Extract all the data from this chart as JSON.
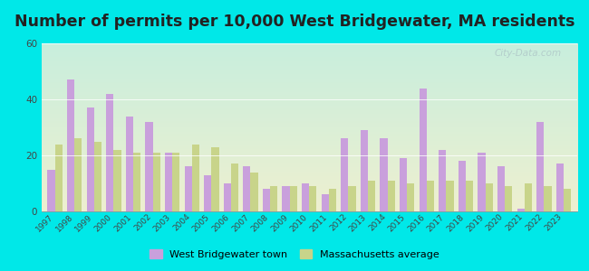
{
  "title": "Number of permits per 10,000 West Bridgewater, MA residents",
  "years": [
    1997,
    1998,
    1999,
    2000,
    2001,
    2002,
    2003,
    2004,
    2005,
    2006,
    2007,
    2008,
    2009,
    2010,
    2011,
    2012,
    2013,
    2014,
    2015,
    2016,
    2017,
    2018,
    2019,
    2020,
    2021,
    2022,
    2023
  ],
  "town_values": [
    15,
    47,
    37,
    42,
    34,
    32,
    21,
    16,
    13,
    10,
    16,
    8,
    9,
    10,
    6,
    26,
    29,
    26,
    19,
    44,
    22,
    18,
    21,
    16,
    1,
    32,
    17
  ],
  "mass_values": [
    24,
    26,
    25,
    22,
    21,
    21,
    21,
    24,
    23,
    17,
    14,
    9,
    9,
    9,
    8,
    9,
    11,
    11,
    10,
    11,
    11,
    11,
    10,
    9,
    10,
    9,
    8
  ],
  "town_color": "#c9a0dc",
  "mass_color": "#c8d48a",
  "bg_outer": "#00e8e8",
  "grad_top": "#c8eedd",
  "grad_bot": "#eef0d0",
  "title_fontsize": 12.5,
  "ylim": [
    0,
    60
  ],
  "yticks": [
    0,
    20,
    40,
    60
  ],
  "bar_width": 0.38,
  "legend_town": "West Bridgewater town",
  "legend_mass": "Massachusetts average",
  "watermark": "City-Data.com"
}
